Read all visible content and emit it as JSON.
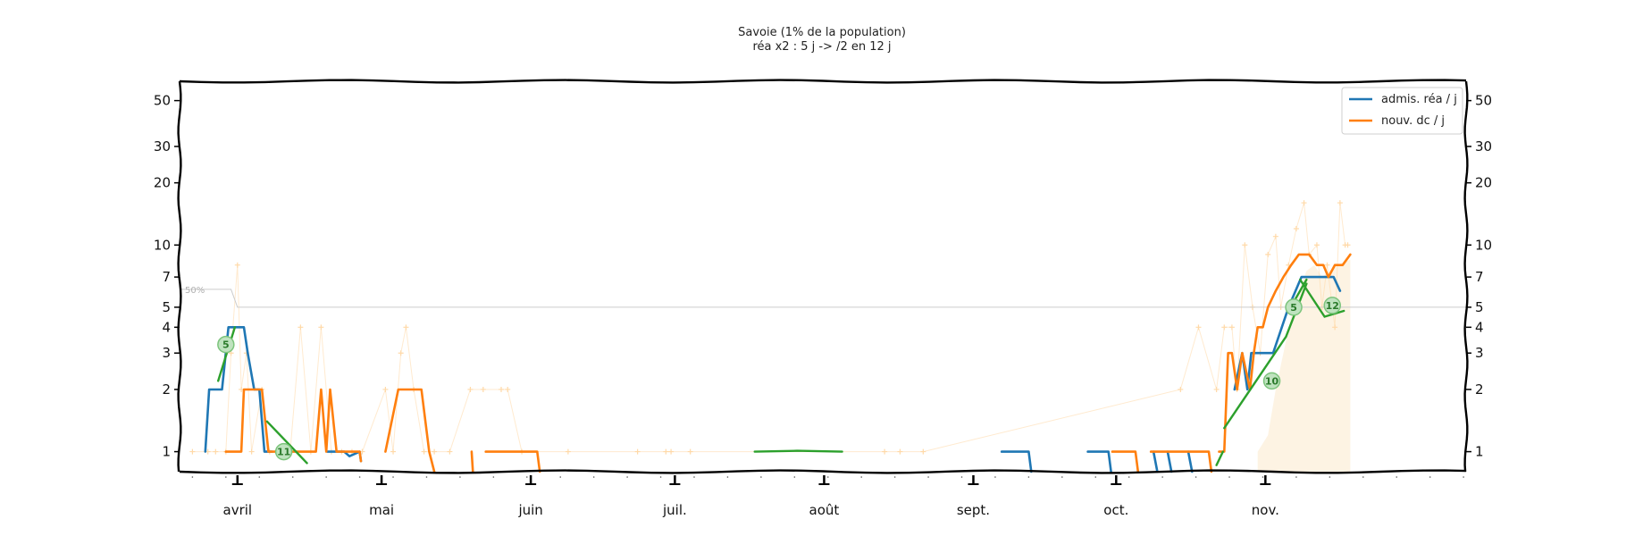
{
  "colors": {
    "rea": "#1f77b4",
    "dc": "#ff7f0e",
    "fit": "#2ca02c",
    "raw": "#ffd9a8",
    "fill": "#fdf3e3",
    "ref": "#cccccc"
  },
  "chart_data": {
    "type": "line",
    "title": "Savoie (1% de la population)",
    "subtitle": "réa x2 : 5 j -> /2 en 12 j",
    "y_scale": "log",
    "ylim": [
      0.8,
      62
    ],
    "x_domain": [
      0,
      1000
    ],
    "yticks": [
      {
        "v": 1,
        "label": "1"
      },
      {
        "v": 2,
        "label": "2"
      },
      {
        "v": 3,
        "label": "3"
      },
      {
        "v": 4,
        "label": "4"
      },
      {
        "v": 5,
        "label": "5"
      },
      {
        "v": 7,
        "label": "7"
      },
      {
        "v": 10,
        "label": "10"
      },
      {
        "v": 20,
        "label": "20"
      },
      {
        "v": 30,
        "label": "30"
      },
      {
        "v": 50,
        "label": "50"
      }
    ],
    "months": [
      {
        "x": 45,
        "label": "avril"
      },
      {
        "x": 157,
        "label": "mai"
      },
      {
        "x": 273,
        "label": "juin"
      },
      {
        "x": 385,
        "label": "juil."
      },
      {
        "x": 501,
        "label": "août"
      },
      {
        "x": 617,
        "label": "sept."
      },
      {
        "x": 728,
        "label": "oct."
      },
      {
        "x": 844,
        "label": "nov."
      }
    ],
    "legend_position": "top-right",
    "reference_line": {
      "label": "50%",
      "points": [
        [
          0,
          6.1
        ],
        [
          40,
          6.1
        ],
        [
          45,
          5.0
        ],
        [
          1000,
          5.0
        ]
      ]
    },
    "series": [
      {
        "name": "admis. réa / j",
        "segments": [
          [
            [
              20,
              1
            ],
            [
              23,
              2
            ],
            [
              33,
              2
            ],
            [
              38,
              4
            ],
            [
              50,
              4
            ],
            [
              53,
              3
            ],
            [
              58,
              2
            ],
            [
              62,
              2
            ],
            [
              66,
              1
            ],
            [
              72,
              1
            ]
          ],
          [
            [
              115,
              1
            ],
            [
              128,
              1
            ],
            [
              132,
              0.95
            ],
            [
              140,
              1
            ],
            [
              141,
              0.9
            ]
          ],
          [
            [
              639,
              1
            ],
            [
              660,
              1
            ],
            [
              662,
              0.8
            ]
          ],
          [
            [
              706,
              1
            ],
            [
              722,
              1
            ],
            [
              724,
              0.8
            ]
          ],
          [
            [
              757,
              1
            ],
            [
              760,
              0.8
            ]
          ],
          [
            [
              768,
              1
            ],
            [
              771,
              0.8
            ]
          ],
          [
            [
              784,
              1
            ],
            [
              787,
              0.8
            ]
          ],
          [
            [
              820,
              2
            ],
            [
              826,
              3
            ],
            [
              830,
              2
            ],
            [
              833,
              3
            ],
            [
              845,
              3
            ],
            [
              850,
              3
            ],
            [
              862,
              5
            ],
            [
              872,
              7
            ],
            [
              888,
              7
            ],
            [
              897,
              7
            ],
            [
              902,
              6
            ]
          ]
        ]
      },
      {
        "name": "nouv. dc / j",
        "segments": [
          [
            [
              36,
              1
            ],
            [
              48,
              1
            ],
            [
              50,
              2
            ],
            [
              64,
              2
            ],
            [
              69,
              1
            ],
            [
              76,
              1
            ],
            [
              91,
              1
            ],
            [
              106,
              1
            ],
            [
              110,
              2
            ],
            [
              114,
              1
            ],
            [
              117,
              2
            ],
            [
              122,
              1
            ],
            [
              140,
              1
            ],
            [
              141,
              0.9
            ]
          ],
          [
            [
              160,
              1
            ],
            [
              170,
              2
            ],
            [
              188,
              2
            ],
            [
              194,
              1
            ],
            [
              198,
              0.8
            ]
          ],
          [
            [
              227,
              1
            ],
            [
              228,
              0.8
            ]
          ],
          [
            [
              238,
              1
            ],
            [
              278,
              1
            ],
            [
              280,
              0.8
            ]
          ],
          [
            [
              725,
              1
            ],
            [
              743,
              1
            ],
            [
              745,
              0.8
            ]
          ],
          [
            [
              755,
              1
            ],
            [
              800,
              1
            ],
            [
              802,
              0.8
            ]
          ],
          [
            [
              808,
              1
            ],
            [
              812,
              1
            ],
            [
              815,
              3
            ],
            [
              818,
              3
            ],
            [
              822,
              2
            ],
            [
              826,
              3
            ],
            [
              832,
              2
            ],
            [
              835,
              3
            ],
            [
              838,
              4
            ],
            [
              842,
              4
            ],
            [
              846,
              5
            ],
            [
              852,
              6
            ],
            [
              858,
              7
            ],
            [
              864,
              8
            ],
            [
              870,
              9
            ],
            [
              878,
              9
            ],
            [
              884,
              8
            ],
            [
              889,
              8
            ],
            [
              893,
              7
            ],
            [
              898,
              8
            ],
            [
              904,
              8
            ],
            [
              910,
              9
            ]
          ]
        ]
      }
    ],
    "fits": [
      {
        "name": "",
        "points": [
          [
            30,
            2.2
          ],
          [
            43,
            4.0
          ]
        ],
        "badge_at": [
          36,
          3.3
        ],
        "badge": "5"
      },
      {
        "name": "",
        "points": [
          [
            68,
            1.4
          ],
          [
            99,
            0.88
          ]
        ],
        "badge_at": [
          81,
          1.0
        ],
        "badge": "11"
      },
      {
        "name": "",
        "points": [
          [
            447,
            1.0
          ],
          [
            480,
            1.01
          ],
          [
            515,
            1.0
          ]
        ],
        "badge_at": null,
        "badge": ""
      },
      {
        "name": "",
        "points": [
          [
            806,
            0.86
          ],
          [
            811,
            1.0
          ]
        ],
        "badge_at": null,
        "badge": ""
      },
      {
        "name": "",
        "points": [
          [
            812,
            1.3
          ],
          [
            860,
            3.6
          ],
          [
            876,
            6.5
          ]
        ],
        "badge_at": [
          849,
          2.2
        ],
        "badge": "10"
      },
      {
        "name": "",
        "points": [
          [
            871,
            6.8
          ],
          [
            890,
            4.5
          ],
          [
            905,
            4.8
          ]
        ],
        "badge_at": [
          896,
          5.1
        ],
        "badge": "12"
      },
      {
        "name": "",
        "points": [
          [
            862,
            4.8
          ],
          [
            876,
            6.8
          ]
        ],
        "badge_at": [
          866,
          5.0
        ],
        "badge": "5"
      }
    ],
    "raw_points": [
      [
        10,
        1
      ],
      [
        22,
        1
      ],
      [
        28,
        1
      ],
      [
        36,
        1
      ],
      [
        40,
        3
      ],
      [
        45,
        8
      ],
      [
        48,
        2
      ],
      [
        52,
        3
      ],
      [
        56,
        1
      ],
      [
        64,
        2
      ],
      [
        70,
        1
      ],
      [
        78,
        1
      ],
      [
        86,
        1
      ],
      [
        94,
        4
      ],
      [
        102,
        1
      ],
      [
        110,
        4
      ],
      [
        118,
        1
      ],
      [
        126,
        1
      ],
      [
        134,
        1
      ],
      [
        142,
        1
      ],
      [
        160,
        2
      ],
      [
        166,
        1
      ],
      [
        172,
        3
      ],
      [
        176,
        4
      ],
      [
        182,
        2
      ],
      [
        190,
        1
      ],
      [
        198,
        1
      ],
      [
        210,
        1
      ],
      [
        226,
        2
      ],
      [
        236,
        2
      ],
      [
        250,
        2
      ],
      [
        255,
        2
      ],
      [
        266,
        1
      ],
      [
        302,
        1
      ],
      [
        356,
        1
      ],
      [
        378,
        1
      ],
      [
        382,
        1
      ],
      [
        397,
        1
      ],
      [
        548,
        1
      ],
      [
        560,
        1
      ],
      [
        578,
        1
      ],
      [
        778,
        2
      ],
      [
        792,
        4
      ],
      [
        806,
        2
      ],
      [
        812,
        4
      ],
      [
        818,
        4
      ],
      [
        822,
        2
      ],
      [
        828,
        10
      ],
      [
        834,
        5
      ],
      [
        840,
        3
      ],
      [
        846,
        9
      ],
      [
        852,
        11
      ],
      [
        856,
        5
      ],
      [
        862,
        8
      ],
      [
        868,
        12
      ],
      [
        874,
        16
      ],
      [
        878,
        9
      ],
      [
        884,
        10
      ],
      [
        888,
        5
      ],
      [
        892,
        8
      ],
      [
        898,
        4
      ],
      [
        902,
        16
      ],
      [
        906,
        10
      ],
      [
        908,
        10
      ]
    ],
    "fill_area": [
      [
        838,
        0.8
      ],
      [
        838,
        1
      ],
      [
        846,
        1.2
      ],
      [
        852,
        2
      ],
      [
        858,
        3
      ],
      [
        864,
        4.5
      ],
      [
        870,
        6
      ],
      [
        876,
        7.5
      ],
      [
        882,
        8
      ],
      [
        888,
        7
      ],
      [
        894,
        7.5
      ],
      [
        900,
        8
      ],
      [
        910,
        8.5
      ],
      [
        910,
        0.8
      ]
    ]
  }
}
